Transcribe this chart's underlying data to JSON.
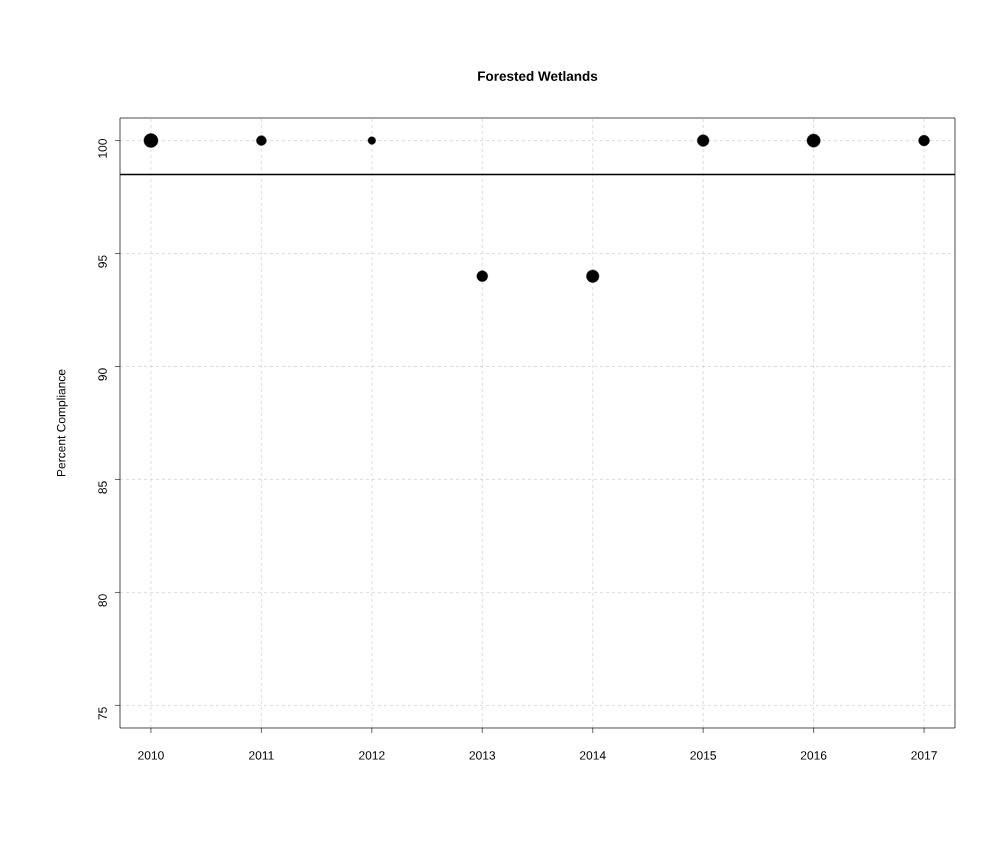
{
  "chart_data": {
    "type": "bubble",
    "title": "Forested Wetlands",
    "ylabel": "Percent Compliance",
    "x": [
      2010,
      2011,
      2012,
      2013,
      2014,
      2015,
      2016,
      2017
    ],
    "values": [
      100,
      100,
      100,
      94,
      94,
      100,
      100,
      100
    ],
    "sizes": [
      1,
      0.5,
      0.3,
      0.6,
      0.8,
      0.7,
      0.9,
      0.6
    ],
    "color": "#000000",
    "marker": "circle",
    "xlim": [
      2009.72,
      2017.28
    ],
    "ylim": [
      74,
      101
    ],
    "xticks": [
      2010,
      2011,
      2012,
      2013,
      2014,
      2015,
      2016,
      2017
    ],
    "yticks": [
      75,
      80,
      85,
      90,
      95,
      100
    ],
    "ref_lines": [
      {
        "axis": "y",
        "value": 98.5,
        "color": "#000000",
        "line_style": "solid"
      }
    ],
    "grid": true
  }
}
